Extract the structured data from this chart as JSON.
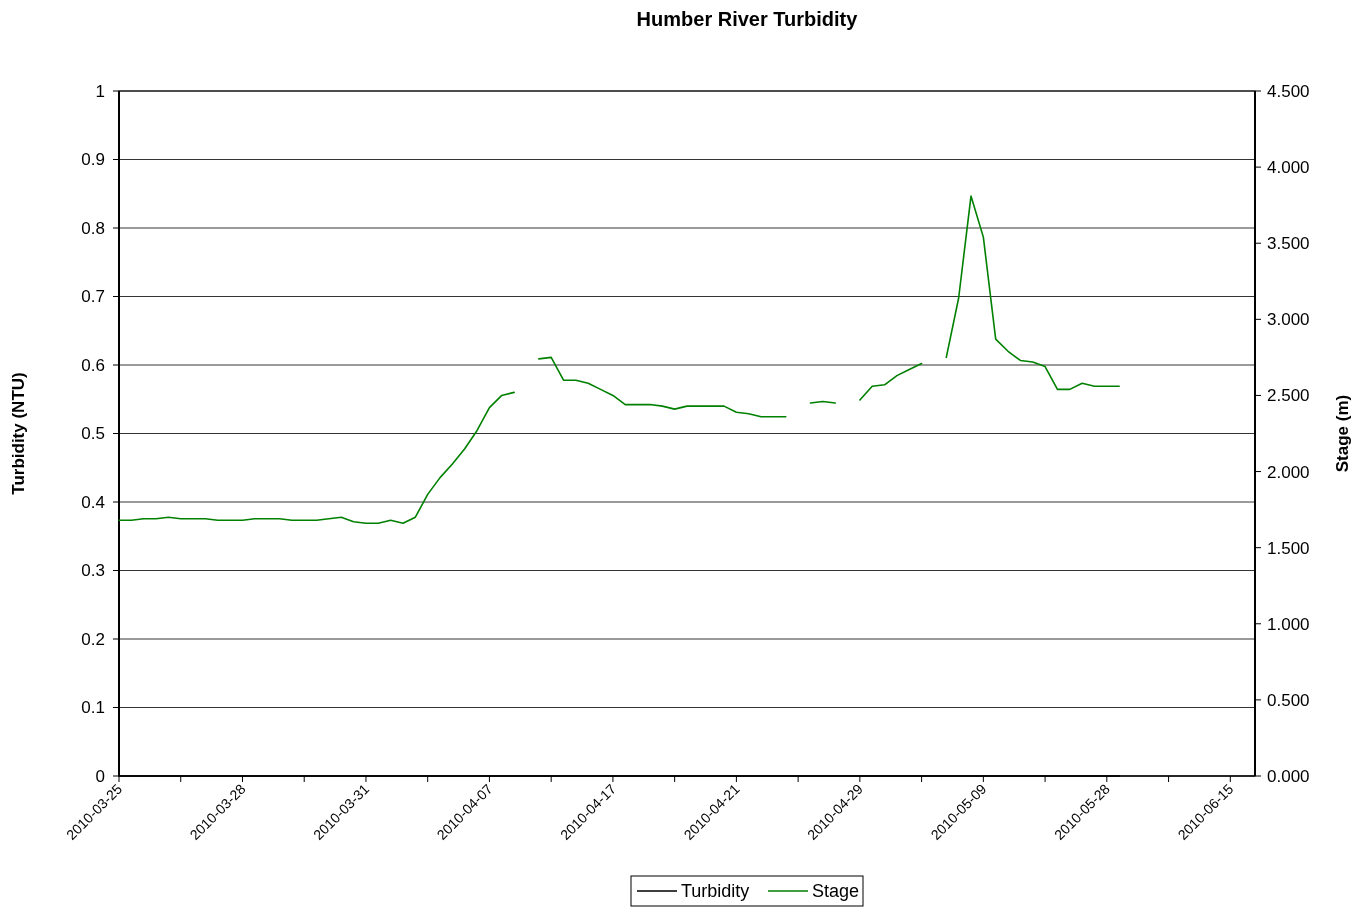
{
  "chart_data": {
    "type": "line",
    "title": "Humber River Turbidity",
    "ylabel": "Turbidity (NTU)",
    "y2label": "Stage (m)",
    "categories": [
      "2010-03-25",
      null,
      null,
      null,
      null,
      null,
      null,
      null,
      null,
      null,
      "2010-03-28",
      null,
      null,
      null,
      null,
      null,
      null,
      null,
      null,
      null,
      "2010-03-31",
      null,
      null,
      null,
      null,
      null,
      null,
      null,
      null,
      null,
      "2010-04-07",
      null,
      null,
      null,
      null,
      null,
      null,
      null,
      null,
      null,
      "2010-04-17",
      null,
      null,
      null,
      null,
      null,
      null,
      null,
      null,
      null,
      "2010-04-21",
      null,
      null,
      null,
      null,
      null,
      null,
      null,
      null,
      null,
      "2010-04-29",
      null,
      null,
      null,
      null,
      null,
      null,
      null,
      null,
      null,
      "2010-05-09",
      null,
      null,
      null,
      null,
      null,
      null,
      null,
      null,
      null,
      "2010-05-28",
      null,
      null,
      null,
      null,
      null,
      null,
      null,
      null,
      null,
      "2010-06-15",
      null,
      null
    ],
    "series": [
      {
        "name": "Turbidity",
        "color": "#000000",
        "axis": "y",
        "values": [
          0,
          0,
          0,
          0,
          0,
          0,
          0,
          0,
          0,
          0,
          0,
          0,
          0,
          0,
          0,
          0,
          0,
          0,
          0,
          0,
          0,
          0,
          0,
          0,
          0,
          0,
          0,
          0,
          0,
          0,
          0,
          0,
          0,
          0,
          0,
          0,
          0,
          0,
          0,
          0,
          0,
          0,
          0,
          0,
          0,
          0,
          0,
          0,
          0,
          0,
          0,
          0,
          0,
          0,
          0,
          0,
          0,
          0,
          0,
          0,
          0,
          0,
          0,
          0,
          0,
          0,
          0,
          0,
          0,
          0,
          0,
          0,
          0,
          0,
          0,
          0,
          0,
          0,
          0,
          0,
          0,
          0,
          null,
          null,
          null,
          null,
          null,
          null,
          null,
          null,
          null,
          null,
          null
        ]
      },
      {
        "name": "Stage",
        "color": "#008000",
        "axis": "y2",
        "values": [
          1.68,
          1.68,
          1.69,
          1.69,
          1.7,
          1.69,
          1.69,
          1.69,
          1.68,
          1.68,
          1.68,
          1.69,
          1.69,
          1.69,
          1.68,
          1.68,
          1.68,
          1.69,
          1.7,
          1.67,
          1.66,
          1.66,
          1.68,
          1.66,
          1.7,
          1.85,
          1.96,
          2.05,
          2.15,
          2.27,
          2.42,
          2.5,
          2.52,
          null,
          2.74,
          2.75,
          2.6,
          2.6,
          2.58,
          2.54,
          2.5,
          2.44,
          2.44,
          2.44,
          2.43,
          2.41,
          2.43,
          2.43,
          2.43,
          2.43,
          2.39,
          2.38,
          2.36,
          2.36,
          2.36,
          null,
          2.45,
          2.46,
          2.45,
          null,
          2.47,
          2.56,
          2.57,
          2.63,
          2.67,
          2.71,
          null,
          2.75,
          3.14,
          3.81,
          3.54,
          2.87,
          2.79,
          2.73,
          2.72,
          2.69,
          2.54,
          2.54,
          2.58,
          2.56,
          2.56,
          2.56,
          null,
          null,
          null,
          null,
          null,
          null,
          null,
          null,
          null,
          null,
          null
        ]
      }
    ],
    "ylim": [
      0,
      1
    ],
    "yticks": [
      0,
      0.1,
      0.2,
      0.3,
      0.4,
      0.5,
      0.6,
      0.7,
      0.8,
      0.9,
      1
    ],
    "y2lim": [
      0,
      4.5
    ],
    "y2ticks": [
      {
        "value": 0,
        "label": "0.000"
      },
      {
        "value": 0.5,
        "label": "0.500"
      },
      {
        "value": 1,
        "label": "1.000"
      },
      {
        "value": 1.5,
        "label": "1.500"
      },
      {
        "value": 2,
        "label": "2.000"
      },
      {
        "value": 2.5,
        "label": "2.500"
      },
      {
        "value": 3,
        "label": "3.000"
      },
      {
        "value": 3.5,
        "label": "3.500"
      },
      {
        "value": 4,
        "label": "4.000"
      },
      {
        "value": 4.5,
        "label": "4.500"
      }
    ],
    "grid": "y",
    "legend": "bottom",
    "marker": "none",
    "line_style": "solid"
  }
}
